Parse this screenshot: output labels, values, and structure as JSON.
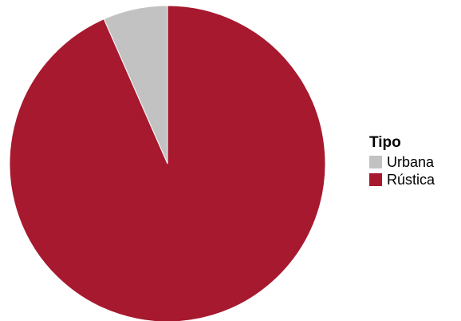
{
  "chart_data": {
    "type": "pie",
    "title": "",
    "legend_position": "right",
    "legend_title": "Tipo",
    "slices": [
      {
        "label": "Urbana",
        "value": 6.6,
        "color": "#c2c2c2"
      },
      {
        "label": "Rústica",
        "value": 93.4,
        "color": "#a6192e"
      }
    ]
  }
}
